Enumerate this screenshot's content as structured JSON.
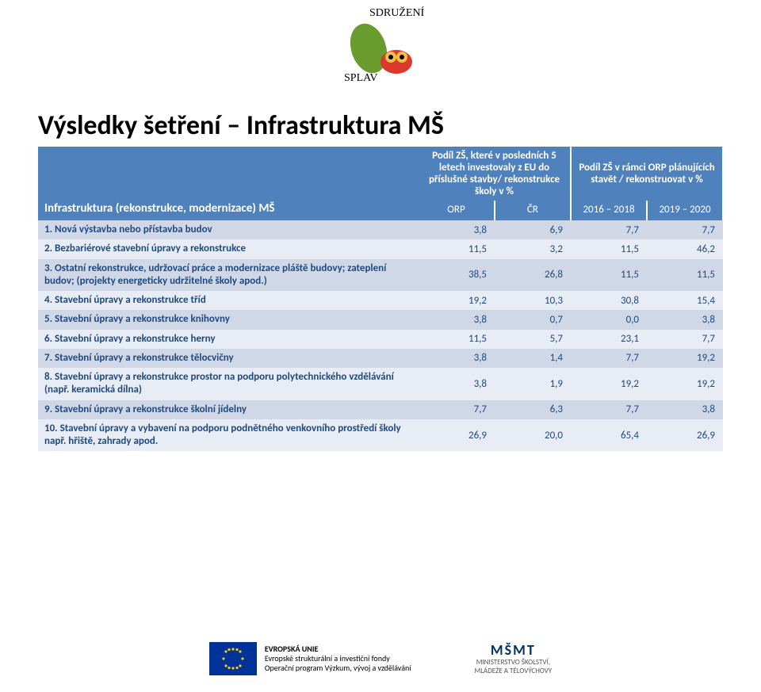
{
  "logo_top_label": "SDRUŽENÍ",
  "logo_top_sub": "SPLAV",
  "title": "Výsledky šetření – Infrastruktura MŠ",
  "table": {
    "category_header": "Infrastruktura (rekonstrukce, modernizace) MŠ",
    "col_group_left": "Podíl ZŠ, které v posledních 5 letech investovaly z EU do příslušné stavby/ rekonstrukce školy v %",
    "col_group_right": "Podíl ZŠ v rámci ORP plánujících stavět / rekonstruovat v %",
    "sub_left_1": "ORP",
    "sub_left_2": "ČR",
    "sub_right_1": "2016 – 2018",
    "sub_right_2": "2019 – 2020",
    "rows": [
      {
        "cat": "1. Nová výstavba nebo přístavba budov",
        "v": [
          "3,8",
          "6,9",
          "7,7",
          "7,7"
        ]
      },
      {
        "cat": "2. Bezbariérové stavební úpravy a rekonstrukce",
        "v": [
          "11,5",
          "3,2",
          "11,5",
          "46,2"
        ]
      },
      {
        "cat": "3. Ostatní rekonstrukce, udržovací práce a modernizace pláště budovy; zateplení budov; (projekty energeticky udržitelné školy apod.)",
        "v": [
          "38,5",
          "26,8",
          "11,5",
          "11,5"
        ]
      },
      {
        "cat": "4. Stavební úpravy a rekonstrukce tříd",
        "v": [
          "19,2",
          "10,3",
          "30,8",
          "15,4"
        ]
      },
      {
        "cat": "5. Stavební úpravy a rekonstrukce knihovny",
        "v": [
          "3,8",
          "0,7",
          "0,0",
          "3,8"
        ]
      },
      {
        "cat": "6. Stavební úpravy a rekonstrukce herny",
        "v": [
          "11,5",
          "5,7",
          "23,1",
          "7,7"
        ]
      },
      {
        "cat": "7. Stavební úpravy a rekonstrukce tělocvičny",
        "v": [
          "3,8",
          "1,4",
          "7,7",
          "19,2"
        ]
      },
      {
        "cat": "8. Stavební úpravy a rekonstrukce prostor na podporu polytechnického vzdělávání (např. keramická dílna)",
        "v": [
          "3,8",
          "1,9",
          "19,2",
          "19,2"
        ]
      },
      {
        "cat": "9. Stavební úpravy a rekonstrukce školní jídelny",
        "v": [
          "7,7",
          "6,3",
          "7,7",
          "3,8"
        ]
      },
      {
        "cat": "10. Stavební úpravy a vybavení na podporu podnětného venkovního prostředí školy např. hřiště, zahrady apod.",
        "v": [
          "26,9",
          "20,0",
          "65,4",
          "26,9"
        ]
      }
    ]
  },
  "footer": {
    "eu_line1": "EVROPSKÁ UNIE",
    "eu_line2": "Evropské strukturální a investiční fondy",
    "eu_line3": "Operační program Výzkum, vývoj a vzdělávání",
    "msmt_logo": "MŠMT",
    "msmt_line1": "MINISTERSTVO ŠKOLSTVÍ,",
    "msmt_line2": "MLÁDEŽE A TĚLOVÝCHOVY"
  },
  "colors": {
    "header_bg": "#4f81bd",
    "band_a": "#d0d8e8",
    "band_b": "#e8ecf4",
    "text_blue": "#1f497d"
  }
}
